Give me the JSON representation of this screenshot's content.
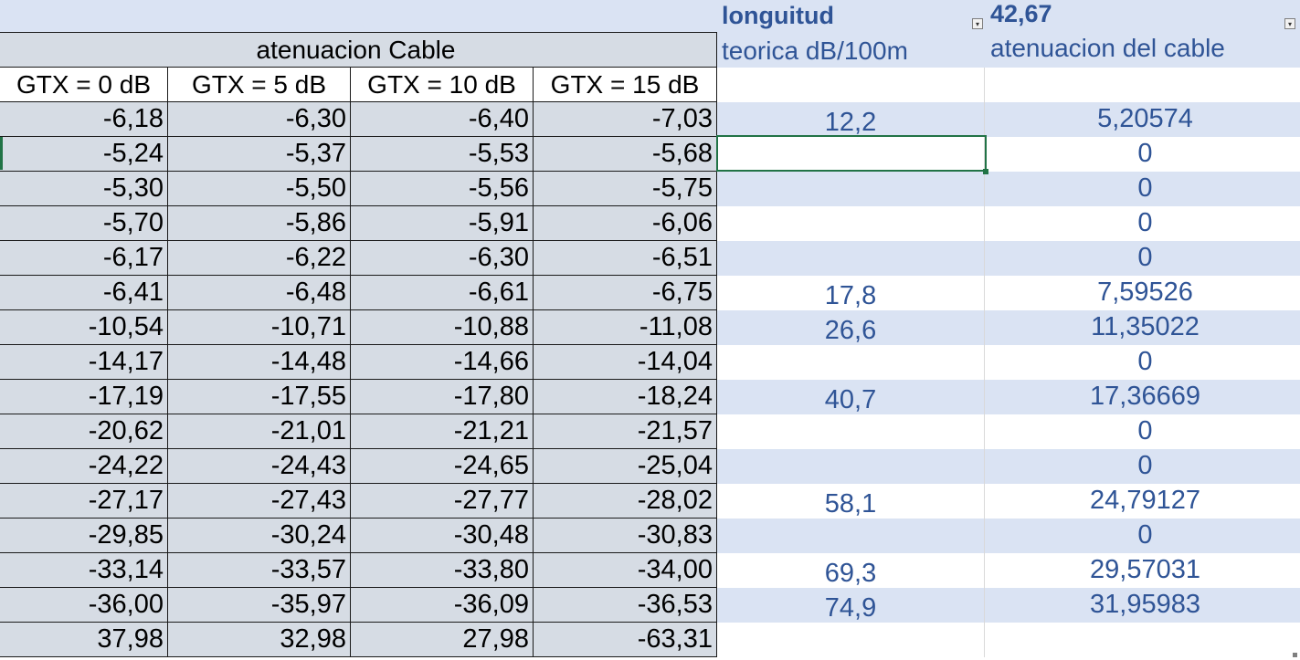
{
  "colors": {
    "left_fill": "#d6dce4",
    "band_fill": "#dae3f3",
    "accent_text": "#2f5496",
    "selection": "#217346"
  },
  "icons": {
    "filter": "dropdown-arrow-icon"
  },
  "header": {
    "longitud_label": "longuitud",
    "longitud_value": "42,67",
    "section_title": "atenuacion Cable",
    "col_teorica": "teorica dB/100m",
    "col_atenuacion": "atenuacion del cable"
  },
  "gtx_headers": [
    "GTX = 0 dB",
    "GTX = 5 dB",
    "GTX = 10 dB",
    "GTX = 15 dB"
  ],
  "rows": [
    {
      "gtx": [
        "-6,18",
        "-6,30",
        "-6,40",
        "-7,03"
      ],
      "teorica": "12,2",
      "atenuacion": "5,20574"
    },
    {
      "gtx": [
        "-5,24",
        "-5,37",
        "-5,53",
        "-5,68"
      ],
      "teorica": "",
      "atenuacion": "0"
    },
    {
      "gtx": [
        "-5,30",
        "-5,50",
        "-5,56",
        "-5,75"
      ],
      "teorica": "",
      "atenuacion": "0"
    },
    {
      "gtx": [
        "-5,70",
        "-5,86",
        "-5,91",
        "-6,06"
      ],
      "teorica": "",
      "atenuacion": "0"
    },
    {
      "gtx": [
        "-6,17",
        "-6,22",
        "-6,30",
        "-6,51"
      ],
      "teorica": "",
      "atenuacion": "0"
    },
    {
      "gtx": [
        "-6,41",
        "-6,48",
        "-6,61",
        "-6,75"
      ],
      "teorica": "17,8",
      "atenuacion": "7,59526"
    },
    {
      "gtx": [
        "-10,54",
        "-10,71",
        "-10,88",
        "-11,08"
      ],
      "teorica": "26,6",
      "atenuacion": "11,35022"
    },
    {
      "gtx": [
        "-14,17",
        "-14,48",
        "-14,66",
        "-14,04"
      ],
      "teorica": "",
      "atenuacion": "0"
    },
    {
      "gtx": [
        "-17,19",
        "-17,55",
        "-17,80",
        "-18,24"
      ],
      "teorica": "40,7",
      "atenuacion": "17,36669"
    },
    {
      "gtx": [
        "-20,62",
        "-21,01",
        "-21,21",
        "-21,57"
      ],
      "teorica": "",
      "atenuacion": "0"
    },
    {
      "gtx": [
        "-24,22",
        "-24,43",
        "-24,65",
        "-25,04"
      ],
      "teorica": "",
      "atenuacion": "0"
    },
    {
      "gtx": [
        "-27,17",
        "-27,43",
        "-27,77",
        "-28,02"
      ],
      "teorica": "58,1",
      "atenuacion": "24,79127"
    },
    {
      "gtx": [
        "-29,85",
        "-30,24",
        "-30,48",
        "-30,83"
      ],
      "teorica": "",
      "atenuacion": "0"
    },
    {
      "gtx": [
        "-33,14",
        "-33,57",
        "-33,80",
        "-34,00"
      ],
      "teorica": "69,3",
      "atenuacion": "29,57031"
    },
    {
      "gtx": [
        "-36,00",
        "-35,97",
        "-36,09",
        "-36,53"
      ],
      "teorica": "74,9",
      "atenuacion": "31,95983"
    },
    {
      "gtx": [
        "37,98",
        "32,98",
        "27,98",
        "-63,31"
      ],
      "teorica": "",
      "atenuacion": ""
    }
  ]
}
